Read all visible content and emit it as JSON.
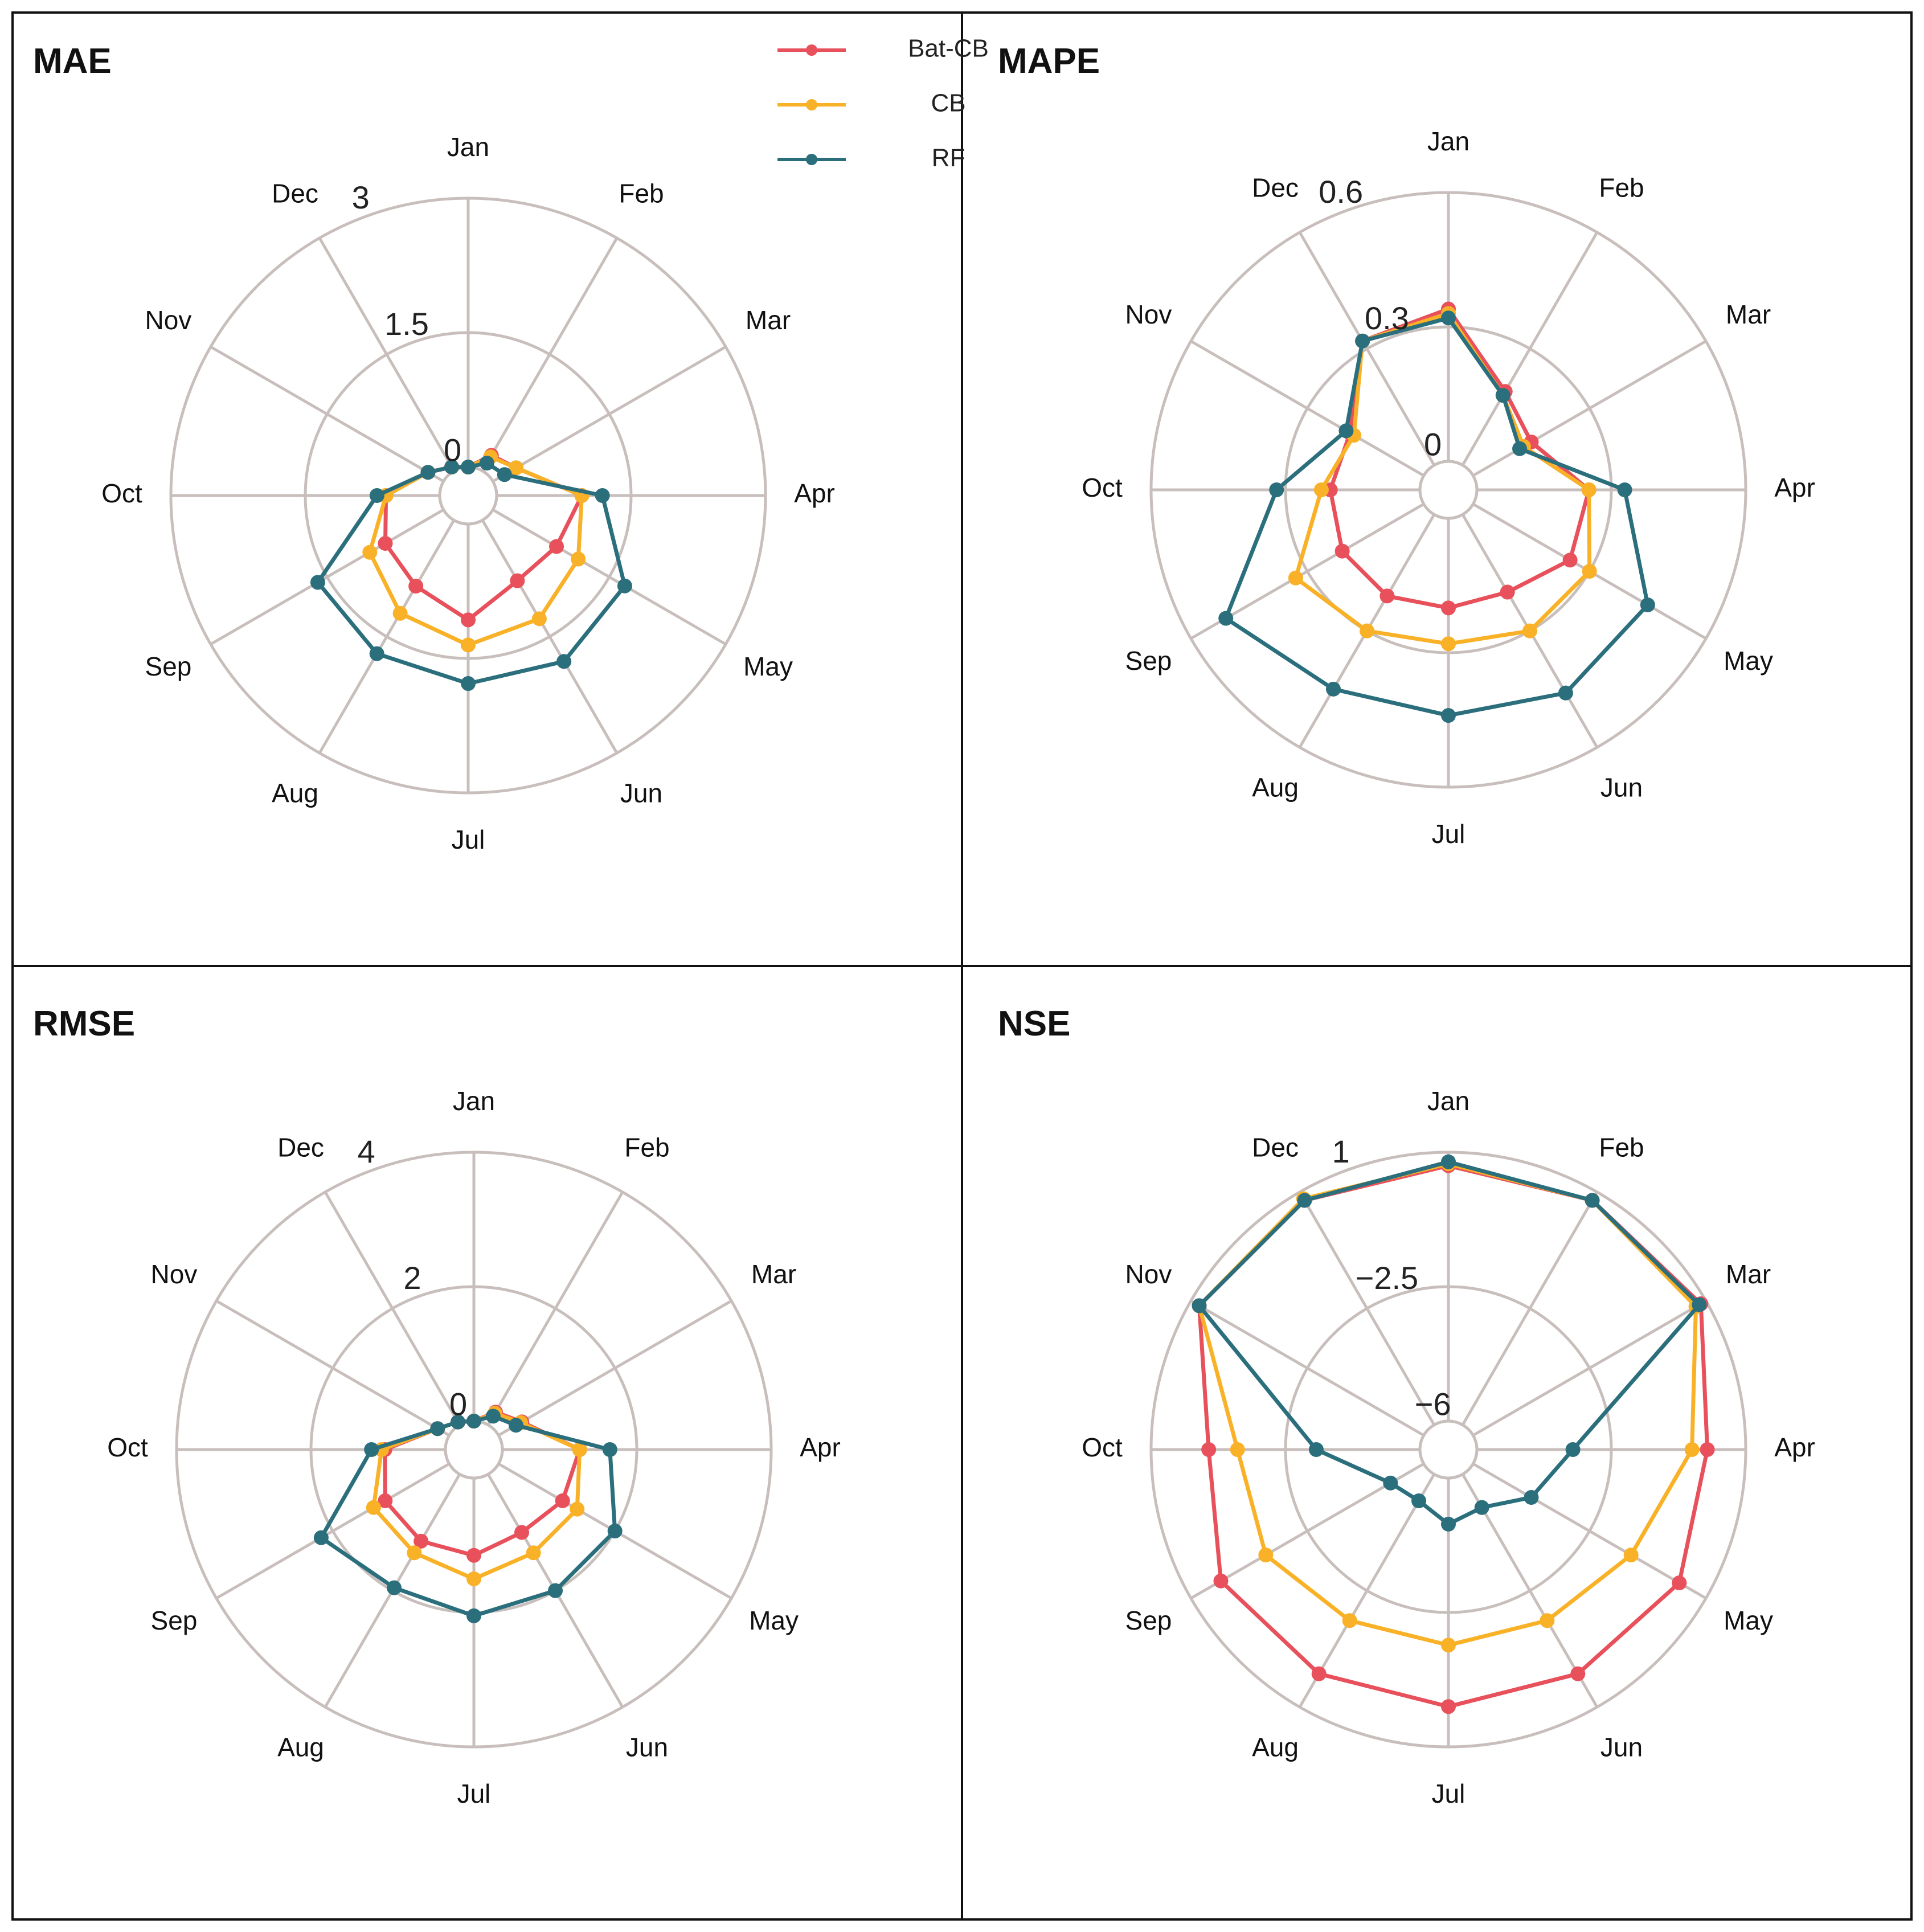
{
  "chart_data": [
    {
      "type": "radar",
      "title": "MAE",
      "categories": [
        "Jan",
        "Feb",
        "Mar",
        "Apr",
        "May",
        "Jun",
        "Jul",
        "Aug",
        "Sep",
        "Oct",
        "Nov",
        "Dec"
      ],
      "rlim": [
        0,
        3
      ],
      "ticks": [
        {
          "value": 0,
          "label": "0"
        },
        {
          "value": 1.5,
          "label": "1.5"
        },
        {
          "value": 3,
          "label": "3"
        }
      ],
      "series": [
        {
          "name": "Bat-CB",
          "color": "#e8505b",
          "values": [
            0.0,
            0.2,
            0.3,
            0.95,
            0.82,
            0.78,
            1.07,
            0.85,
            0.75,
            0.6,
            0.2,
            0.05
          ]
        },
        {
          "name": "CB",
          "color": "#f9b127",
          "values": [
            0.0,
            0.18,
            0.3,
            0.95,
            1.1,
            1.27,
            1.35,
            1.2,
            0.95,
            0.6,
            0.2,
            0.05
          ]
        },
        {
          "name": "RF",
          "color": "#2b6f7d",
          "values": [
            0.0,
            0.1,
            0.15,
            1.18,
            1.7,
            1.82,
            1.78,
            1.72,
            1.62,
            0.7,
            0.2,
            0.05
          ]
        }
      ]
    },
    {
      "type": "radar",
      "title": "MAPE",
      "categories": [
        "Jan",
        "Feb",
        "Mar",
        "Apr",
        "May",
        "Jun",
        "Jul",
        "Aug",
        "Sep",
        "Oct",
        "Nov",
        "Dec"
      ],
      "rlim": [
        0,
        0.6
      ],
      "ticks": [
        {
          "value": 0,
          "label": "0"
        },
        {
          "value": 0.3,
          "label": "0.3"
        },
        {
          "value": 0.6,
          "label": "0.6"
        }
      ],
      "series": [
        {
          "name": "Bat-CB",
          "color": "#e8505b",
          "values": [
            0.34,
            0.19,
            0.15,
            0.25,
            0.25,
            0.2,
            0.2,
            0.21,
            0.21,
            0.2,
            0.19,
            0.32
          ]
        },
        {
          "name": "CB",
          "color": "#f9b127",
          "values": [
            0.33,
            0.18,
            0.13,
            0.25,
            0.3,
            0.3,
            0.28,
            0.3,
            0.33,
            0.22,
            0.18,
            0.32
          ]
        },
        {
          "name": "RF",
          "color": "#2b6f7d",
          "values": [
            0.32,
            0.18,
            0.12,
            0.33,
            0.45,
            0.46,
            0.44,
            0.45,
            0.51,
            0.32,
            0.2,
            0.32
          ]
        }
      ]
    },
    {
      "type": "radar",
      "title": "RMSE",
      "categories": [
        "Jan",
        "Feb",
        "Mar",
        "Apr",
        "May",
        "Jun",
        "Jul",
        "Aug",
        "Sep",
        "Oct",
        "Nov",
        "Dec"
      ],
      "rlim": [
        0,
        4
      ],
      "ticks": [
        {
          "value": 0,
          "label": "0"
        },
        {
          "value": 2,
          "label": "2"
        },
        {
          "value": 4,
          "label": "4"
        }
      ],
      "series": [
        {
          "name": "Bat-CB",
          "color": "#e8505b",
          "values": [
            0.0,
            0.22,
            0.4,
            1.15,
            1.1,
            1.0,
            1.15,
            1.15,
            1.1,
            0.9,
            0.2,
            0.05
          ]
        },
        {
          "name": "CB",
          "color": "#f9b127",
          "values": [
            0.0,
            0.2,
            0.38,
            1.15,
            1.35,
            1.35,
            1.5,
            1.35,
            1.3,
            0.95,
            0.2,
            0.05
          ]
        },
        {
          "name": "RF",
          "color": "#2b6f7d",
          "values": [
            0.0,
            0.15,
            0.3,
            1.6,
            2.0,
            2.0,
            2.05,
            1.95,
            2.2,
            1.1,
            0.2,
            0.05
          ]
        }
      ]
    },
    {
      "type": "radar",
      "title": "NSE",
      "categories": [
        "Jan",
        "Feb",
        "Mar",
        "Apr",
        "May",
        "Jun",
        "Jul",
        "Aug",
        "Sep",
        "Oct",
        "Nov",
        "Dec"
      ],
      "rlim": [
        -6,
        1
      ],
      "ticks": [
        {
          "value": -6,
          "label": "−6"
        },
        {
          "value": -2.5,
          "label": "−2.5"
        },
        {
          "value": 1,
          "label": "1"
        }
      ],
      "series": [
        {
          "name": "Bat-CB",
          "color": "#e8505b",
          "values": [
            0.65,
            0.75,
            0.85,
            0.0,
            0.2,
            0.0,
            -0.05,
            0.0,
            0.1,
            -0.5,
            0.75,
            0.75
          ]
        },
        {
          "name": "CB",
          "color": "#f9b127",
          "values": [
            0.7,
            0.75,
            0.7,
            -0.4,
            -1.25,
            -1.6,
            -1.65,
            -1.6,
            -1.25,
            -1.25,
            0.75,
            0.8
          ]
        },
        {
          "name": "RF",
          "color": "#2b6f7d",
          "values": [
            0.75,
            0.75,
            0.8,
            -3.5,
            -4.25,
            -5.0,
            -4.8,
            -5.2,
            -5.0,
            -3.3,
            0.75,
            0.75
          ]
        }
      ]
    }
  ],
  "legend": {
    "placement": "top-right of MAE panel",
    "items": [
      {
        "label": "Bat-CB",
        "color": "#e8505b"
      },
      {
        "label": "CB",
        "color": "#f9b127"
      },
      {
        "label": "RF",
        "color": "#2b6f7d"
      }
    ]
  }
}
